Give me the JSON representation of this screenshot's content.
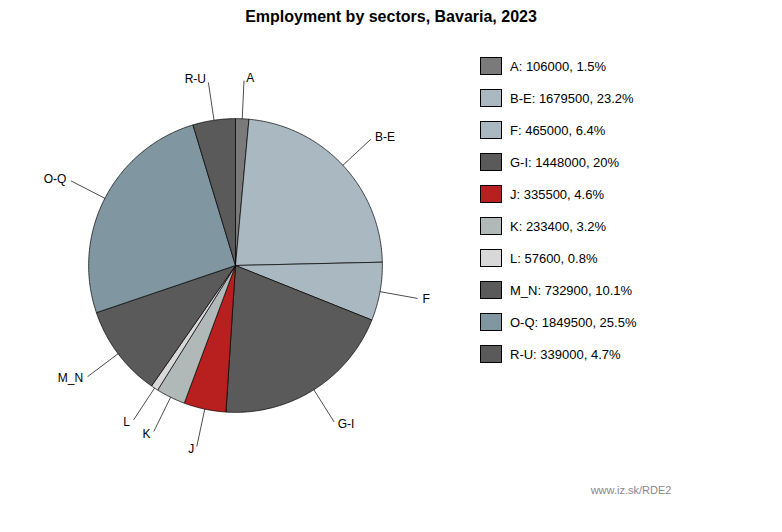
{
  "chart_data": {
    "type": "pie",
    "title": "Employment by sectors, Bavaria, 2023",
    "categories": [
      "A",
      "B-E",
      "F",
      "G-I",
      "J",
      "K",
      "L",
      "M_N",
      "O-Q",
      "R-U"
    ],
    "values": [
      106000,
      1679500,
      465000,
      1448000,
      335500,
      233400,
      57600,
      732900,
      1849500,
      339000
    ],
    "colors": [
      "#7a7a7a",
      "#aab8c2",
      "#aab8c2",
      "#5a5a5a",
      "#b82020",
      "#b0b8b8",
      "#d8d8d8",
      "#5a5a5a",
      "#8096a0",
      "#5a5a5a"
    ],
    "legend_labels": [
      "A: 106000, 1.5%",
      "B-E: 1679500, 23.2%",
      "F: 465000, 6.4%",
      "G-I: 1448000, 20%",
      "J: 335500, 4.6%",
      "K: 233400, 3.2%",
      "L: 57600, 0.8%",
      "M_N: 732900, 10.1%",
      "O-Q: 1849500, 25.5%",
      "R-U: 339000, 4.7%"
    ],
    "legend": "right",
    "annotations": [
      "www.iz.sk/RDE2"
    ]
  }
}
